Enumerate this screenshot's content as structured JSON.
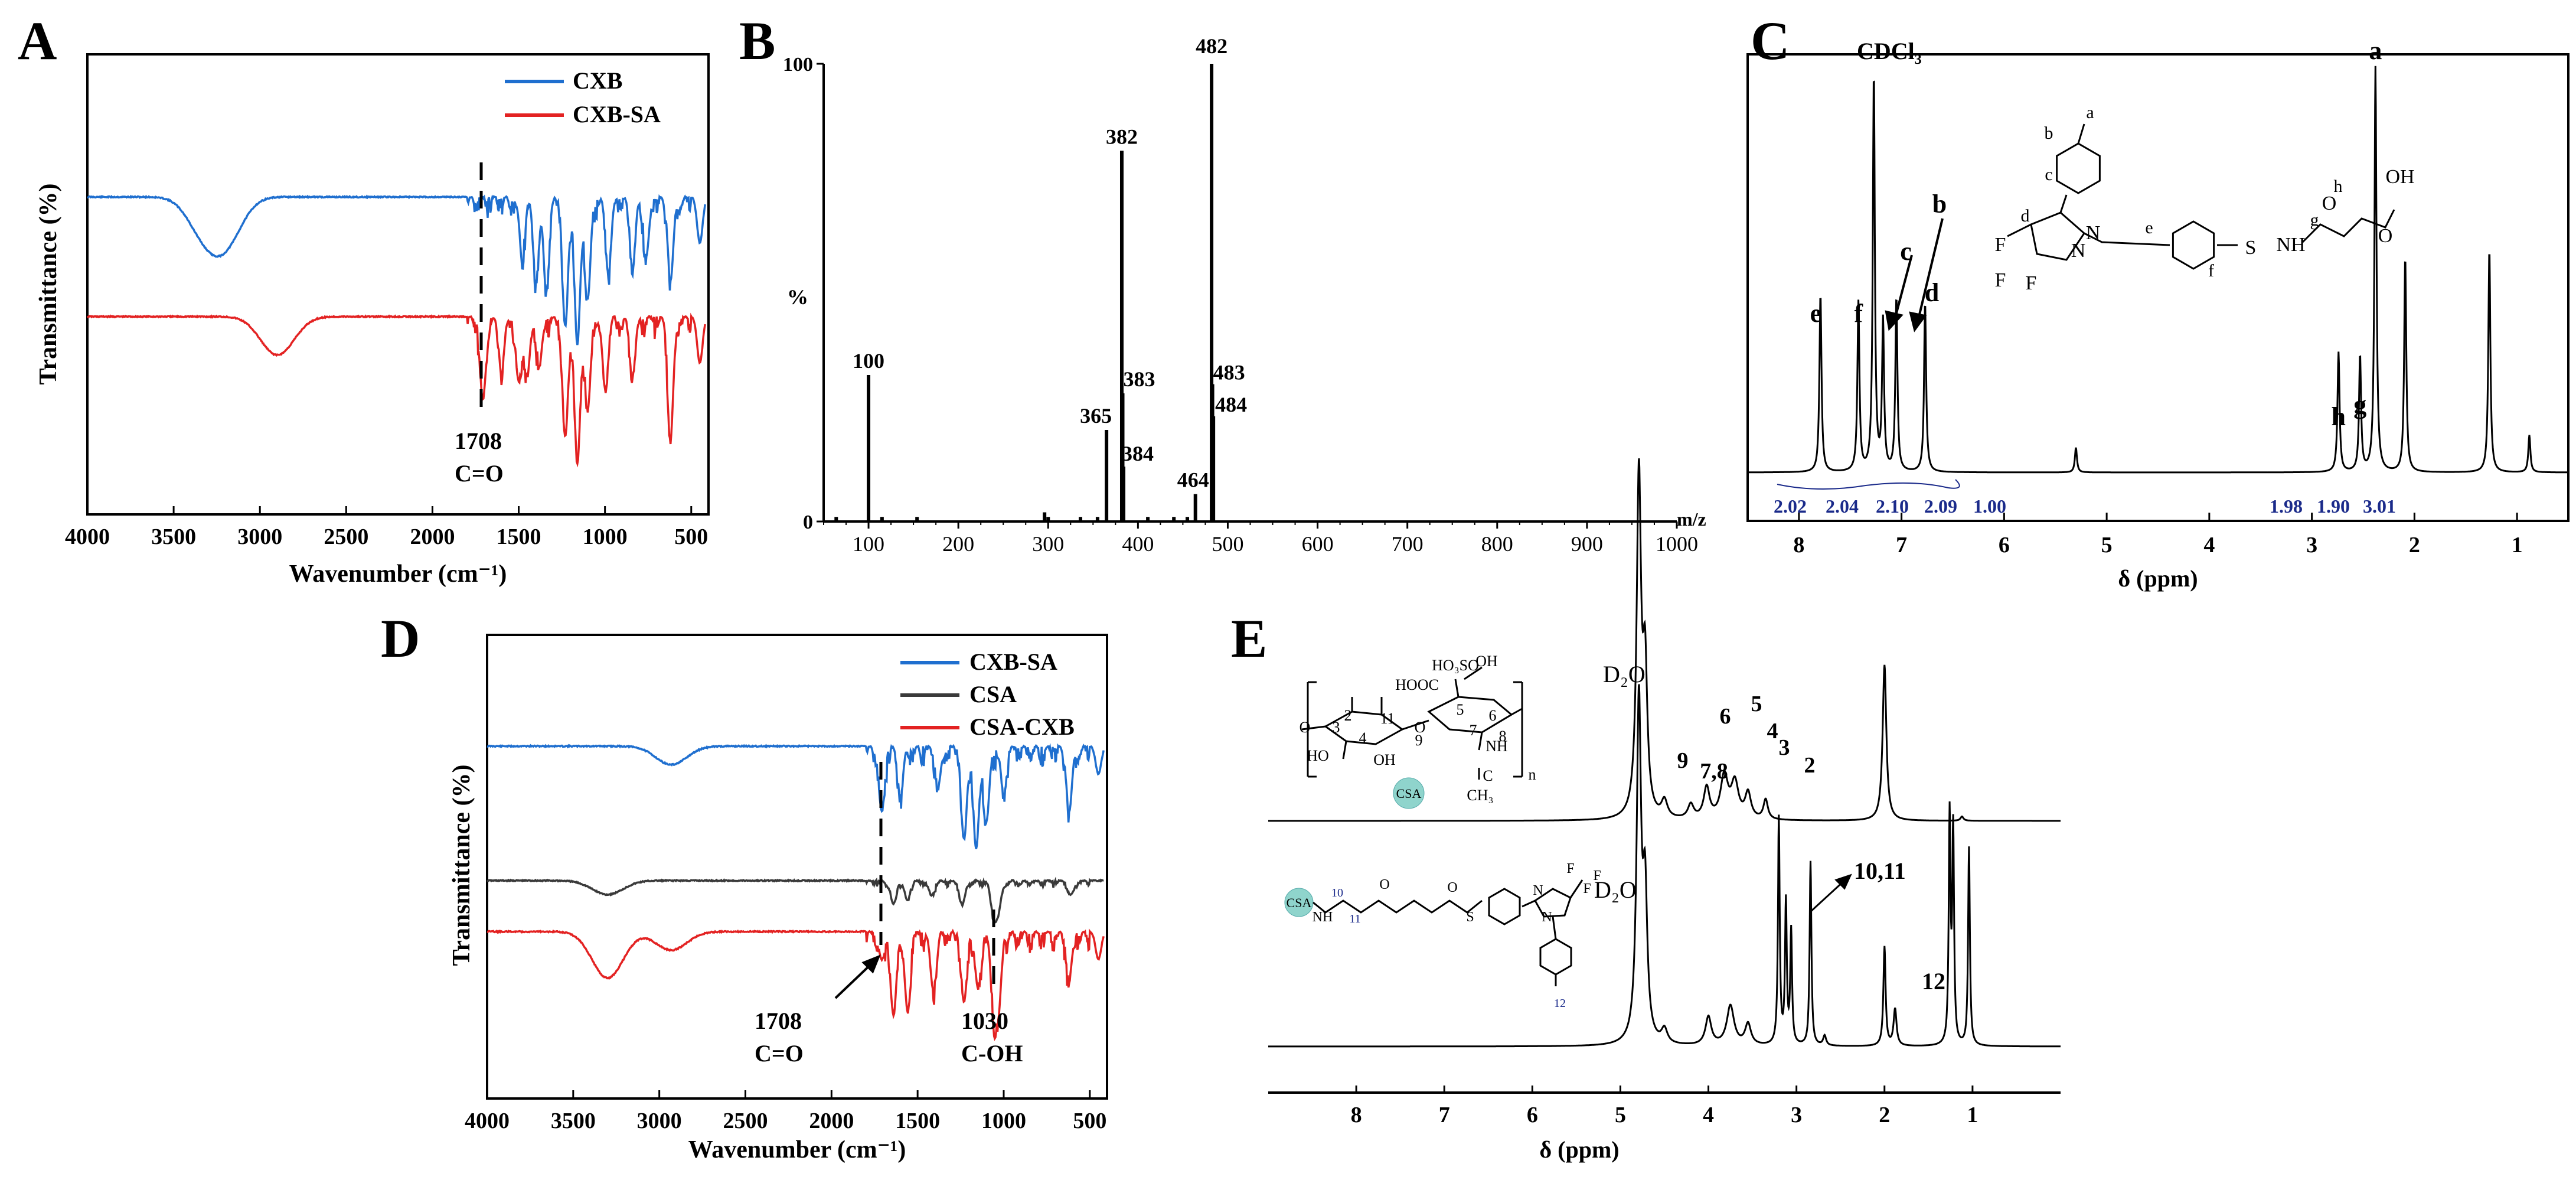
{
  "colors": {
    "blue": "#1f6fcf",
    "red": "#e32222",
    "black": "#000000",
    "gray": "#3a3a3a",
    "navy": "#1a2a8a",
    "teal": "#8fd4cc"
  },
  "chart_data": [
    {
      "panel": "A",
      "type": "line",
      "xlabel": "Wavenumber (cm⁻¹)",
      "ylabel": "Transmittance (%)",
      "xlim": [
        4000,
        400
      ],
      "xticks": [
        "4000",
        "3500",
        "3000",
        "2500",
        "2000",
        "1500",
        "1000",
        "500"
      ],
      "legend": [
        "CXB",
        "CXB-SA"
      ],
      "legend_position": "top-right",
      "annotation": {
        "x": 1708,
        "label1": "1708",
        "label2": "C=O"
      },
      "series": [
        {
          "name": "CXB",
          "color": "#1f6fcf",
          "baseline": 0.69,
          "x": [
            4000,
            3340,
            3230,
            3160,
            1480,
            1400,
            1340,
            1230,
            1160,
            1100,
            980,
            840,
            760,
            620,
            450
          ],
          "depth": [
            0,
            0.06,
            0.07,
            0.04,
            0.12,
            0.17,
            0.19,
            0.28,
            0.32,
            0.22,
            0.16,
            0.14,
            0.12,
            0.18,
            0.1
          ]
        },
        {
          "name": "CXB-SA",
          "color": "#e32222",
          "baseline": 0.43,
          "x": [
            4000,
            2930,
            2860,
            1708,
            1600,
            1500,
            1450,
            1380,
            1230,
            1160,
            1100,
            1000,
            840,
            620,
            450
          ],
          "depth": [
            0,
            0.05,
            0.04,
            0.18,
            0.11,
            0.14,
            0.12,
            0.1,
            0.26,
            0.32,
            0.2,
            0.14,
            0.12,
            0.26,
            0.1
          ]
        }
      ]
    },
    {
      "panel": "B",
      "type": "bar",
      "xlabel": "m/z",
      "ylabel": "%",
      "xlim": [
        50,
        1000
      ],
      "ylim": [
        0,
        100
      ],
      "xticks": [
        "100",
        "200",
        "300",
        "400",
        "500",
        "600",
        "700",
        "800",
        "900",
        "1000"
      ],
      "yticks": [
        "0",
        "100"
      ],
      "x": [
        64,
        100,
        115,
        154,
        296,
        300,
        336,
        355,
        365,
        382,
        383,
        384,
        411,
        440,
        455,
        464,
        482,
        483,
        484
      ],
      "values": [
        1,
        32,
        1,
        1,
        2,
        1,
        1,
        1,
        20,
        81,
        28,
        12,
        1,
        1,
        1,
        6,
        100,
        30,
        23
      ],
      "labels": [
        "100",
        "365",
        "382",
        "383",
        "384",
        "464",
        "482",
        "483",
        "484"
      ]
    },
    {
      "panel": "C",
      "type": "line",
      "xlabel": "δ (ppm)",
      "xlim": [
        8.5,
        0.5
      ],
      "xticks": [
        "8",
        "7",
        "6",
        "5",
        "4",
        "3",
        "2",
        "1"
      ],
      "solvent_label": "CDCl₃",
      "peaks": [
        {
          "ppm": 7.79,
          "height": 0.43,
          "label": "e"
        },
        {
          "ppm": 7.42,
          "height": 0.41,
          "label": "f"
        },
        {
          "ppm": 7.27,
          "height": 0.96,
          "label": ""
        },
        {
          "ppm": 7.18,
          "height": 0.36,
          "label": "c"
        },
        {
          "ppm": 7.05,
          "height": 0.42,
          "label": "b"
        },
        {
          "ppm": 6.77,
          "height": 0.41,
          "label": "d"
        },
        {
          "ppm": 5.3,
          "height": 0.06,
          "label": ""
        },
        {
          "ppm": 2.74,
          "height": 0.29,
          "label": "h"
        },
        {
          "ppm": 2.53,
          "height": 0.28,
          "label": "g"
        },
        {
          "ppm": 2.38,
          "height": 0.98,
          "label": "a"
        },
        {
          "ppm": 2.09,
          "height": 0.52,
          "label": ""
        },
        {
          "ppm": 1.27,
          "height": 0.54,
          "label": ""
        },
        {
          "ppm": 0.88,
          "height": 0.09,
          "label": ""
        }
      ],
      "integrals": [
        "2.02",
        "2.04",
        "2.10",
        "2.09",
        "1.00",
        "1.98",
        "1.90",
        "3.01"
      ],
      "structure_labels": [
        "a",
        "b",
        "c",
        "d",
        "e",
        "f",
        "g",
        "h",
        "OH",
        "O",
        "O",
        "NH",
        "S",
        "F",
        "F",
        "F",
        "N",
        "N"
      ]
    },
    {
      "panel": "D",
      "type": "line",
      "xlabel": "Wavenumber (cm⁻¹)",
      "ylabel": "Transmittance (%)",
      "xlim": [
        4000,
        400
      ],
      "xticks": [
        "4000",
        "3500",
        "3000",
        "2500",
        "2000",
        "1500",
        "1000",
        "500"
      ],
      "legend": [
        "CXB-SA",
        "CSA",
        "CSA-CXB"
      ],
      "legend_position": "top-right",
      "annotations": [
        {
          "x": 1708,
          "label1": "1708",
          "label2": "C=O"
        },
        {
          "x": 1030,
          "label1": "1030",
          "label2": "C-OH"
        }
      ],
      "series": [
        {
          "name": "CXB-SA",
          "color": "#1f6fcf",
          "baseline": 0.76,
          "x": [
            4000,
            2930,
            1708,
            1600,
            1380,
            1230,
            1160,
            1100,
            1000,
            620,
            450
          ],
          "depth": [
            0,
            0.04,
            0.14,
            0.1,
            0.08,
            0.2,
            0.22,
            0.16,
            0.1,
            0.14,
            0.06
          ]
        },
        {
          "name": "CSA",
          "color": "#3a3a3a",
          "baseline": 0.47,
          "x": [
            4000,
            3300,
            1640,
            1560,
            1420,
            1240,
            1060,
            1030,
            610
          ],
          "depth": [
            0,
            0.03,
            0.05,
            0.04,
            0.03,
            0.05,
            0.07,
            0.06,
            0.03
          ]
        },
        {
          "name": "CSA-CXB",
          "color": "#e32222",
          "baseline": 0.36,
          "x": [
            4000,
            3300,
            2930,
            1708,
            1640,
            1560,
            1410,
            1230,
            1150,
            1060,
            1030,
            620,
            450
          ],
          "depth": [
            0,
            0.1,
            0.04,
            0.06,
            0.18,
            0.16,
            0.12,
            0.15,
            0.12,
            0.14,
            0.16,
            0.1,
            0.06
          ]
        }
      ]
    },
    {
      "panel": "E",
      "type": "line",
      "xlabel": "δ (ppm)",
      "xlim": [
        9.0,
        0.0
      ],
      "xticks": [
        "8",
        "7",
        "6",
        "5",
        "4",
        "3",
        "2",
        "1"
      ],
      "solvent_label": "D₂O",
      "top_labels": [
        "9",
        "7,8",
        "6",
        "5",
        "4",
        "3",
        "2"
      ],
      "bottom_labels": [
        "10,11",
        "12"
      ],
      "structure_labels": [
        "HOOC",
        "HO₃SO",
        "OH",
        "OH",
        "HO",
        "NH",
        "C",
        "CH₃",
        "n",
        "O",
        "O",
        "CSA",
        "1",
        "2",
        "3",
        "4",
        "5",
        "6",
        "7",
        "8",
        "9",
        "11"
      ],
      "structure2_labels": [
        "CSA",
        "10",
        "11",
        "12",
        "F",
        "F",
        "F",
        "N",
        "N",
        "NH",
        "S",
        "O",
        "O"
      ]
    }
  ],
  "panel_labels": [
    "A",
    "B",
    "C",
    "D",
    "E"
  ]
}
